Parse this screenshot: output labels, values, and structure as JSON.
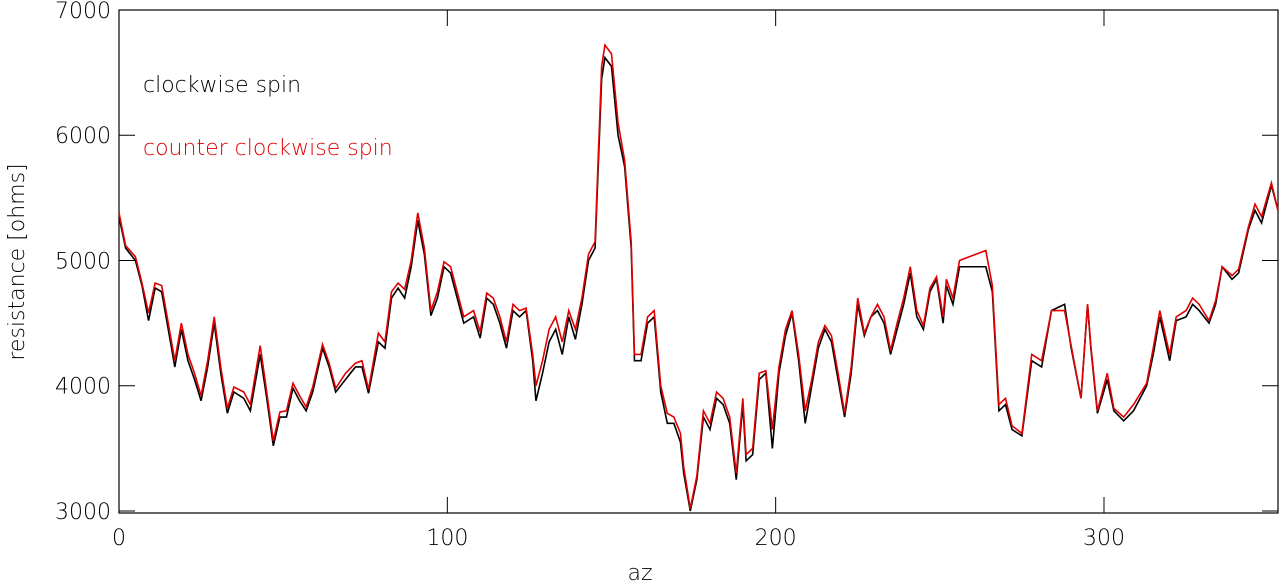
{
  "chart_data": {
    "type": "line",
    "xlabel": "az",
    "ylabel": "resistance [ohms]",
    "xlim": [
      0,
      353
    ],
    "ylim": [
      2984,
      7000
    ],
    "xticks": [
      0,
      100,
      200,
      300
    ],
    "yticks": [
      3000,
      4000,
      5000,
      6000,
      7000
    ],
    "x": [
      0,
      2,
      5,
      7,
      9,
      11,
      13,
      15,
      17,
      19,
      21,
      23,
      25,
      27,
      29,
      31,
      33,
      35,
      38,
      40,
      43,
      45,
      47,
      49,
      51,
      53,
      55,
      57,
      59,
      62,
      64,
      66,
      69,
      72,
      74,
      76,
      79,
      81,
      83,
      85,
      87,
      89,
      91,
      93,
      95,
      97,
      99,
      101,
      103,
      105,
      108,
      110,
      112,
      114,
      116,
      118,
      120,
      122,
      124,
      126,
      127,
      129,
      131,
      133,
      135,
      137,
      139,
      141,
      143,
      145,
      147,
      148,
      150,
      152,
      154,
      156,
      157,
      159,
      161,
      163,
      165,
      167,
      169,
      171,
      172,
      174,
      176,
      178,
      180,
      182,
      184,
      186,
      188,
      190,
      191,
      193,
      195,
      197,
      199,
      201,
      203,
      205,
      207,
      209,
      211,
      213,
      215,
      217,
      219,
      221,
      223,
      225,
      227,
      229,
      231,
      233,
      235,
      237,
      239,
      241,
      243,
      245,
      247,
      249,
      251,
      252,
      254,
      256,
      264,
      266,
      268,
      270,
      272,
      275,
      278,
      281,
      284,
      288,
      290,
      293,
      295,
      296,
      298,
      301,
      303,
      306,
      309,
      313,
      315,
      317,
      320,
      322,
      325,
      327,
      329,
      332,
      334,
      336,
      339,
      341,
      344,
      346,
      348,
      351,
      353
    ],
    "series": [
      {
        "name": "clockwise spin",
        "color": "#000000",
        "values": [
          5350,
          5100,
          5000,
          4800,
          4520,
          4780,
          4750,
          4450,
          4150,
          4450,
          4200,
          4050,
          3880,
          4150,
          4500,
          4100,
          3780,
          3950,
          3900,
          3800,
          4250,
          3900,
          3520,
          3750,
          3750,
          3980,
          3880,
          3800,
          3950,
          4300,
          4150,
          3950,
          4050,
          4150,
          4150,
          3940,
          4350,
          4300,
          4700,
          4780,
          4700,
          4950,
          5320,
          5050,
          4560,
          4700,
          4950,
          4900,
          4700,
          4500,
          4550,
          4380,
          4700,
          4650,
          4500,
          4300,
          4600,
          4550,
          4600,
          4200,
          3880,
          4100,
          4350,
          4450,
          4250,
          4550,
          4370,
          4650,
          5000,
          5100,
          6450,
          6620,
          6550,
          6000,
          5750,
          5100,
          4200,
          4200,
          4500,
          4550,
          3950,
          3700,
          3700,
          3550,
          3300,
          3000,
          3250,
          3750,
          3650,
          3900,
          3850,
          3700,
          3250,
          3850,
          3400,
          3450,
          4050,
          4100,
          3500,
          4100,
          4400,
          4580,
          4200,
          3700,
          4000,
          4300,
          4450,
          4350,
          4050,
          3750,
          4100,
          4650,
          4400,
          4550,
          4600,
          4500,
          4250,
          4450,
          4650,
          4900,
          4550,
          4450,
          4750,
          4850,
          4500,
          4800,
          4650,
          4950,
          4950,
          4750,
          3800,
          3850,
          3650,
          3600,
          4200,
          4150,
          4600,
          4650,
          4300,
          3900,
          4650,
          4300,
          3780,
          4050,
          3800,
          3720,
          3800,
          4000,
          4250,
          4550,
          4200,
          4520,
          4550,
          4650,
          4600,
          4500,
          4650,
          4950,
          4850,
          4900,
          5250,
          5400,
          5300,
          5600,
          5400
        ]
      },
      {
        "name": "counter clockwise spin",
        "color": "#e00000",
        "values": [
          5380,
          5120,
          5030,
          4820,
          4580,
          4820,
          4800,
          4500,
          4200,
          4500,
          4250,
          4100,
          3920,
          4200,
          4550,
          4150,
          3820,
          3990,
          3950,
          3850,
          4320,
          3950,
          3560,
          3790,
          3800,
          4020,
          3920,
          3830,
          3990,
          4330,
          4180,
          3980,
          4100,
          4180,
          4200,
          3970,
          4420,
          4350,
          4750,
          4820,
          4770,
          5000,
          5380,
          5100,
          4600,
          4750,
          4990,
          4950,
          4750,
          4550,
          4600,
          4430,
          4740,
          4700,
          4550,
          4350,
          4650,
          4600,
          4620,
          4250,
          4000,
          4200,
          4450,
          4550,
          4350,
          4600,
          4450,
          4700,
          5050,
          5150,
          6550,
          6720,
          6650,
          6100,
          5800,
          5150,
          4250,
          4250,
          4550,
          4600,
          4000,
          3780,
          3750,
          3620,
          3350,
          3020,
          3280,
          3800,
          3700,
          3950,
          3900,
          3750,
          3300,
          3900,
          3450,
          3500,
          4100,
          4120,
          3650,
          4150,
          4450,
          4600,
          4250,
          3800,
          4050,
          4350,
          4480,
          4400,
          4100,
          3780,
          4150,
          4700,
          4420,
          4550,
          4650,
          4550,
          4280,
          4500,
          4700,
          4950,
          4600,
          4480,
          4780,
          4870,
          4550,
          4850,
          4700,
          5000,
          5080,
          4800,
          3850,
          3900,
          3680,
          3620,
          4250,
          4200,
          4600,
          4600,
          4320,
          3900,
          4650,
          4320,
          3800,
          4100,
          3820,
          3750,
          3850,
          4020,
          4300,
          4600,
          4250,
          4550,
          4600,
          4700,
          4650,
          4520,
          4680,
          4950,
          4880,
          4930,
          5270,
          5450,
          5350,
          5620,
          5400
        ]
      }
    ]
  }
}
